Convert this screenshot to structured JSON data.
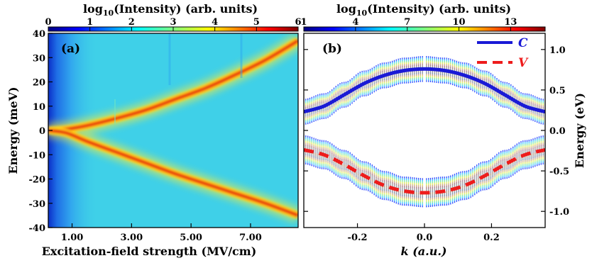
{
  "chart_data": [
    {
      "type": "heatmap",
      "panel_label": "(a)",
      "colorbar": {
        "title": "log₁₀(Intensity) (arb. units)",
        "ticks": [
          "0",
          "1",
          "2",
          "3",
          "4",
          "5",
          "6"
        ],
        "range": [
          0,
          6
        ]
      },
      "xlabel": "Excitation-field strength (MV/cm)",
      "ylabel": "Energy (meV)",
      "xticks": [
        "1.00",
        "3.00",
        "5.00",
        "7.00"
      ],
      "xtick_values": [
        1,
        3,
        5,
        7
      ],
      "xlim": [
        0.2,
        8.6
      ],
      "yticks": [
        "40",
        "30",
        "20",
        "10",
        "0",
        "-10",
        "-20",
        "-30",
        "-40"
      ],
      "ytick_values": [
        40,
        30,
        20,
        10,
        0,
        -10,
        -20,
        -30,
        -40
      ],
      "ylim": [
        -40,
        40
      ],
      "branches": [
        {
          "name": "upper",
          "x": [
            0.2,
            0.8,
            1.5,
            2.5,
            3.5,
            4.5,
            5.5,
            6.5,
            7.5,
            8.6
          ],
          "y": [
            0,
            0.5,
            2,
            5,
            8.5,
            13,
            17.5,
            23,
            29,
            37
          ]
        },
        {
          "name": "lower",
          "x": [
            0.2,
            0.8,
            1.5,
            2.5,
            3.5,
            4.5,
            5.5,
            6.5,
            7.5,
            8.6
          ],
          "y": [
            0,
            -1,
            -4.5,
            -9,
            -13.5,
            -18,
            -22,
            -26,
            -30,
            -35
          ]
        }
      ]
    },
    {
      "type": "line",
      "panel_label": "(b)",
      "colorbar": {
        "title": "log₁₀(Intensity) (arb. units)",
        "ticks": [
          "1",
          "4",
          "7",
          "10",
          "13"
        ],
        "range": [
          1,
          15
        ]
      },
      "xlabel": "k (a.u.)",
      "ylabel": "Energy (eV)",
      "xticks": [
        "-0.2",
        "0.0",
        "0.2"
      ],
      "xtick_values": [
        -0.2,
        0.0,
        0.2
      ],
      "xlim": [
        -0.36,
        0.36
      ],
      "yticks": [
        "1.0",
        "0.5",
        "0.0",
        "-0.5",
        "-1.0"
      ],
      "ytick_values": [
        1.0,
        0.5,
        0.0,
        -0.5,
        -1.0
      ],
      "ylim": [
        -1.2,
        1.2
      ],
      "series": [
        {
          "name": "C",
          "color": "#1a1ad6",
          "style": "solid",
          "x": [
            -0.36,
            -0.3,
            -0.24,
            -0.18,
            -0.12,
            -0.06,
            0.0,
            0.06,
            0.12,
            0.18,
            0.24,
            0.3,
            0.36
          ],
          "y": [
            0.23,
            0.3,
            0.44,
            0.58,
            0.68,
            0.74,
            0.76,
            0.74,
            0.68,
            0.58,
            0.44,
            0.3,
            0.23
          ]
        },
        {
          "name": "V",
          "color": "#ee1c1c",
          "style": "dashed",
          "x": [
            -0.36,
            -0.3,
            -0.24,
            -0.18,
            -0.12,
            -0.06,
            0.0,
            0.06,
            0.12,
            0.18,
            0.24,
            0.3,
            0.36
          ],
          "y": [
            -0.24,
            -0.3,
            -0.42,
            -0.56,
            -0.68,
            -0.75,
            -0.77,
            -0.75,
            -0.68,
            -0.56,
            -0.42,
            -0.3,
            -0.24
          ]
        }
      ],
      "bands": [
        {
          "center": "C",
          "halfwidth": 0.16
        },
        {
          "center": "V",
          "halfwidth": 0.18
        }
      ],
      "legend": "top-right"
    }
  ],
  "colors": {
    "jet": [
      "#00007f",
      "#0000ff",
      "#007fff",
      "#00ffff",
      "#7fff7f",
      "#ffff00",
      "#ff7f00",
      "#ff0000",
      "#7f0000"
    ],
    "background_a": "#3fd0e8"
  }
}
